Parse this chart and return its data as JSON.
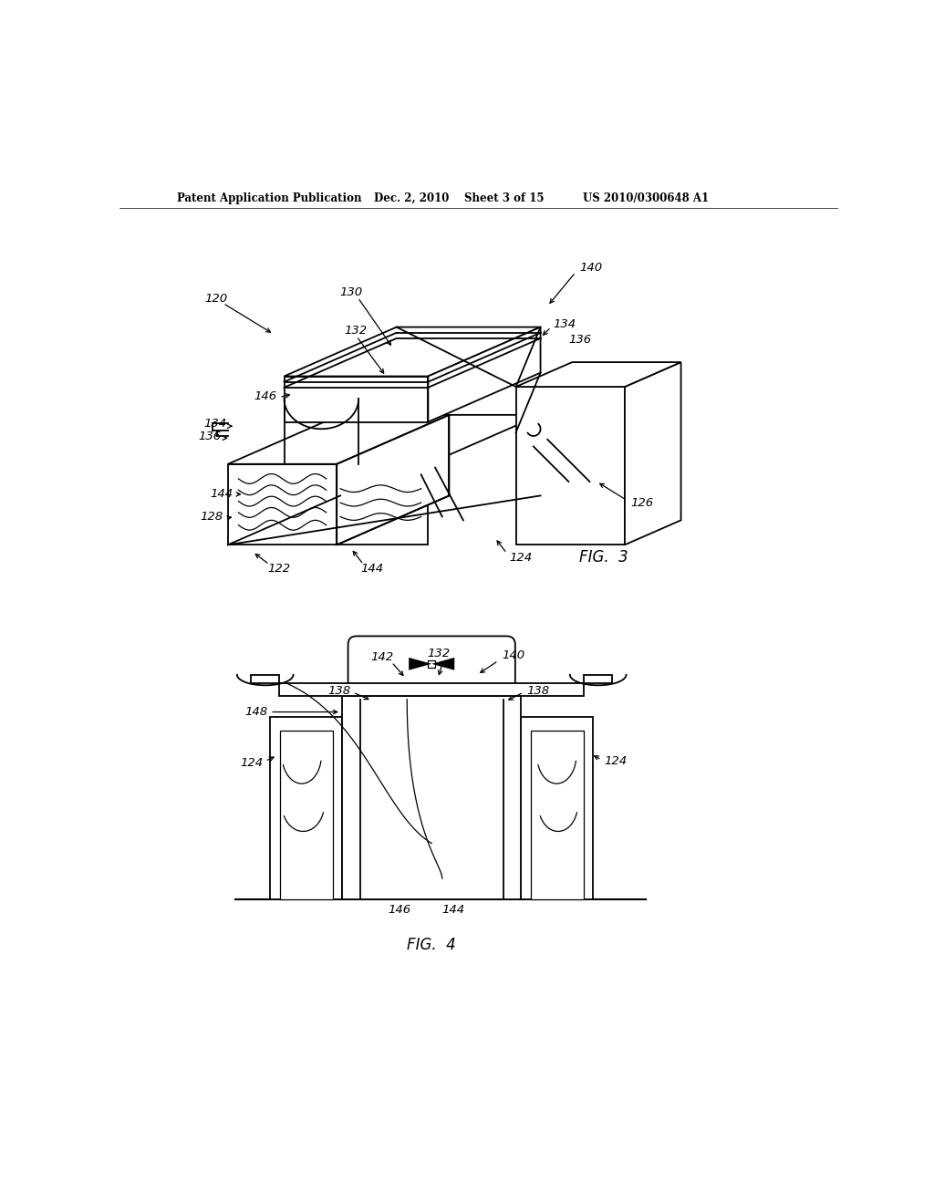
{
  "bg_color": "#ffffff",
  "header_text": "Patent Application Publication",
  "header_date": "Dec. 2, 2010",
  "header_sheet": "Sheet 3 of 15",
  "header_patent": "US 2010/0300648 A1",
  "fig3_label": "FIG.  3",
  "fig4_label": "FIG.  4"
}
